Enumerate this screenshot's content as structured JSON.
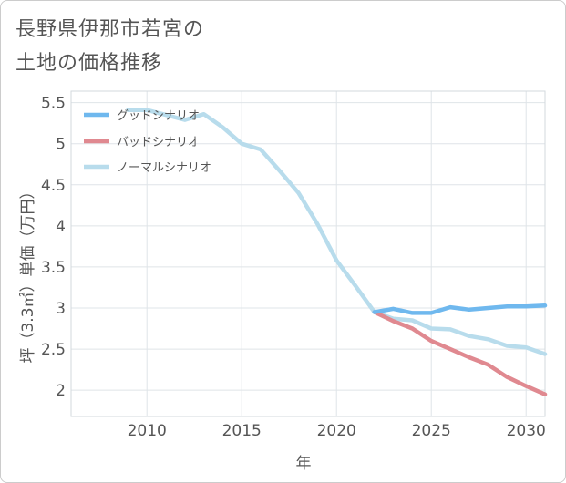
{
  "chart_data": {
    "type": "line",
    "title": [
      "長野県伊那市若宮の",
      "土地の価格推移"
    ],
    "xlabel": "年",
    "ylabel": "坪（3.3㎡）単価（万円）",
    "xlim": [
      2006,
      2031
    ],
    "ylim": [
      1.68,
      5.64
    ],
    "x_ticks": [
      2010,
      2015,
      2020,
      2025,
      2030
    ],
    "x_tick_labels": [
      "2010",
      "2015",
      "2020",
      "2025",
      "2030"
    ],
    "y_ticks": [
      2,
      2.5,
      3,
      3.5,
      4,
      4.5,
      5,
      5.5
    ],
    "y_tick_labels": [
      "2",
      "2.5",
      "3",
      "3.5",
      "4",
      "4.5",
      "5",
      "5.5"
    ],
    "grid": true,
    "legend": "top-left",
    "series": [
      {
        "name": "グッドシナリオ",
        "color": "#6fb8ee",
        "x": [
          2022,
          2023,
          2024,
          2025,
          2026,
          2027,
          2028,
          2029,
          2030,
          2031
        ],
        "y": [
          2.95,
          2.99,
          2.94,
          2.94,
          3.01,
          2.98,
          3.0,
          3.02,
          3.02,
          3.03
        ]
      },
      {
        "name": "バッドシナリオ",
        "color": "#e08990",
        "x": [
          2022,
          2023,
          2024,
          2025,
          2026,
          2027,
          2028,
          2029,
          2030,
          2031
        ],
        "y": [
          2.95,
          2.84,
          2.75,
          2.6,
          2.5,
          2.4,
          2.31,
          2.16,
          2.05,
          1.95
        ]
      },
      {
        "name": "ノーマルシナリオ",
        "color": "#b8dcec",
        "x": [
          2009,
          2010,
          2011,
          2012,
          2013,
          2014,
          2015,
          2016,
          2017,
          2018,
          2019,
          2020,
          2021,
          2022,
          2023,
          2024,
          2025,
          2026,
          2027,
          2028,
          2029,
          2030,
          2031
        ],
        "y": [
          5.41,
          5.41,
          5.35,
          5.29,
          5.36,
          5.2,
          5.0,
          4.93,
          4.67,
          4.4,
          4.02,
          3.58,
          3.27,
          2.95,
          2.87,
          2.85,
          2.75,
          2.74,
          2.66,
          2.62,
          2.54,
          2.52,
          2.44
        ]
      }
    ]
  }
}
